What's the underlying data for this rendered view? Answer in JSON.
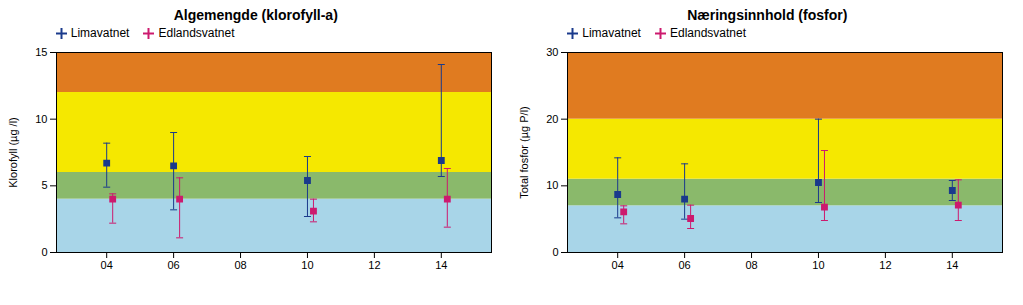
{
  "chart_data": [
    {
      "type": "scatter",
      "title": "Algemengde (klorofyll-a)",
      "ylabel": "Klorofyll (µg /l)",
      "x": [
        4,
        6,
        10,
        14
      ],
      "xlim": [
        2.5,
        15.5
      ],
      "xticks": [
        {
          "value": 4,
          "label": "04"
        },
        {
          "value": 6,
          "label": "06"
        },
        {
          "value": 8,
          "label": "08"
        },
        {
          "value": 10,
          "label": "10"
        },
        {
          "value": 12,
          "label": "12"
        },
        {
          "value": 14,
          "label": "14"
        }
      ],
      "ylim": [
        0,
        15
      ],
      "yticks": [
        0,
        5,
        10,
        15
      ],
      "legend": "upper left",
      "bands": [
        {
          "ymin": 0,
          "ymax": 4,
          "color": "#a8d5e8"
        },
        {
          "ymin": 4,
          "ymax": 6,
          "color": "#8ab96b"
        },
        {
          "ymin": 6,
          "ymax": 12,
          "color": "#f5e800"
        },
        {
          "ymin": 12,
          "ymax": 15,
          "color": "#e07b20"
        }
      ],
      "series": [
        {
          "name": "Limavatnet",
          "color": "#1a3a8c",
          "marker": "square",
          "values": [
            6.7,
            6.5,
            5.4,
            6.9
          ],
          "error_minus": [
            1.8,
            3.3,
            2.7,
            1.2
          ],
          "error_plus": [
            1.5,
            2.5,
            1.8,
            7.2
          ]
        },
        {
          "name": "Edlandsvatnet",
          "color": "#cc1a6e",
          "marker": "square",
          "values": [
            4.0,
            4.0,
            3.1,
            4.0
          ],
          "error_minus": [
            1.8,
            2.9,
            0.8,
            2.1
          ],
          "error_plus": [
            0.4,
            1.6,
            0.9,
            2.3
          ]
        }
      ]
    },
    {
      "type": "scatter",
      "title": "Næringsinnhold (fosfor)",
      "ylabel": "Total fosfor (µg P/l)",
      "x": [
        4,
        6,
        10,
        14
      ],
      "xlim": [
        2.5,
        15.5
      ],
      "xticks": [
        {
          "value": 4,
          "label": "04"
        },
        {
          "value": 6,
          "label": "06"
        },
        {
          "value": 8,
          "label": "08"
        },
        {
          "value": 10,
          "label": "10"
        },
        {
          "value": 12,
          "label": "12"
        },
        {
          "value": 14,
          "label": "14"
        }
      ],
      "ylim": [
        0,
        30
      ],
      "yticks": [
        0,
        10,
        20,
        30
      ],
      "legend": "upper left",
      "bands": [
        {
          "ymin": 0,
          "ymax": 7,
          "color": "#a8d5e8"
        },
        {
          "ymin": 7,
          "ymax": 11,
          "color": "#8ab96b"
        },
        {
          "ymin": 11,
          "ymax": 20,
          "color": "#f5e800"
        },
        {
          "ymin": 20,
          "ymax": 30,
          "color": "#e07b20"
        }
      ],
      "series": [
        {
          "name": "Limavatnet",
          "color": "#1a3a8c",
          "marker": "square",
          "values": [
            8.7,
            8.0,
            10.5,
            9.3
          ],
          "error_minus": [
            3.5,
            3.0,
            3.0,
            1.5
          ],
          "error_plus": [
            5.5,
            5.3,
            9.5,
            1.5
          ]
        },
        {
          "name": "Edlandsvatnet",
          "color": "#cc1a6e",
          "marker": "square",
          "values": [
            6.1,
            5.1,
            6.8,
            7.1
          ],
          "error_minus": [
            1.8,
            1.5,
            2.0,
            2.3
          ],
          "error_plus": [
            0.9,
            2.0,
            8.5,
            3.8
          ]
        }
      ]
    }
  ]
}
